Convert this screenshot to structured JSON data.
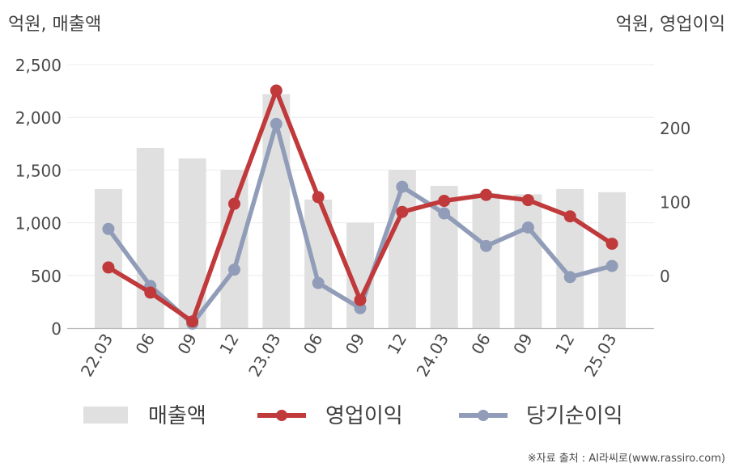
{
  "chart_data": {
    "type": "bar",
    "left_axis_unit": "억원, 매출액",
    "right_axis_unit": "억원, 영업이익",
    "categories": [
      "22.03",
      "06",
      "09",
      "12",
      "23.03",
      "06",
      "09",
      "12",
      "24.03",
      "06",
      "09",
      "12",
      "25.03"
    ],
    "left_axis": {
      "ylim": [
        0,
        2500
      ],
      "ticks": [
        "0",
        "500",
        "1,000",
        "1,500",
        "2,000",
        "2,500"
      ],
      "tick_values": [
        0,
        500,
        1000,
        1500,
        2000,
        2500
      ]
    },
    "right_axis": {
      "ylim": [
        -71,
        285
      ],
      "ticks": [
        "0",
        "100",
        "200"
      ],
      "tick_values": [
        0,
        100,
        200
      ]
    },
    "series": [
      {
        "name": "매출액",
        "type": "bar",
        "axis": "left",
        "color": "#e0e0e0",
        "values": [
          1320,
          1710,
          1610,
          1500,
          2220,
          1220,
          1000,
          1500,
          1350,
          1280,
          1270,
          1320,
          1290
        ]
      },
      {
        "name": "영업이익",
        "type": "line",
        "axis": "right",
        "color": "#c0393b",
        "values": [
          11,
          -23,
          -62,
          97,
          250,
          106,
          -33,
          86,
          101,
          109,
          102,
          80,
          43
        ]
      },
      {
        "name": "당기순이익",
        "type": "line",
        "axis": "right",
        "color": "#919db8",
        "values": [
          63,
          -14,
          -65,
          8,
          205,
          -10,
          -44,
          120,
          84,
          40,
          65,
          -2,
          13
        ]
      }
    ],
    "grid": true,
    "legend_position": "bottom"
  },
  "source": "※자료 출처 : AI라씨로(www.rassiro.com)"
}
